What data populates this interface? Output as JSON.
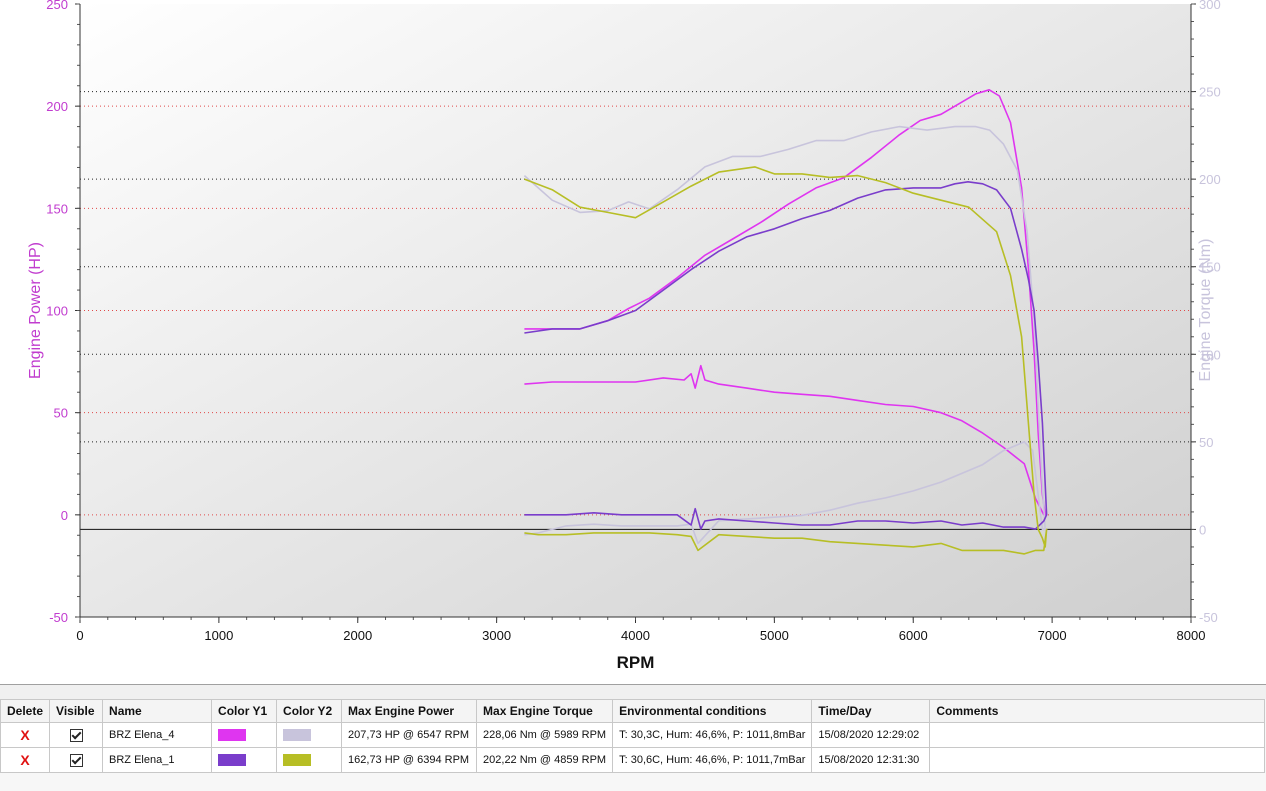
{
  "chart_data": {
    "type": "line",
    "xlabel": "RPM",
    "y1label": "Engine Power (HP)",
    "y2label": "Engine Torque (Nm)",
    "xlim": [
      0,
      8000
    ],
    "y1lim": [
      -50,
      250
    ],
    "y2lim": [
      -50,
      300
    ],
    "x_ticks": [
      "0",
      "1000",
      "2000",
      "3000",
      "4000",
      "5000",
      "6000",
      "7000",
      "8000"
    ],
    "y1_ticks": [
      "-50",
      "0",
      "50",
      "100",
      "150",
      "200",
      "250"
    ],
    "y2_ticks": [
      "-50",
      "0",
      "50",
      "100",
      "150",
      "200",
      "250",
      "300"
    ],
    "grid": true,
    "series": [
      {
        "name": "BRZ Elena_4",
        "axis": "y1",
        "color": "#df35f0",
        "x": [
          3200,
          3400,
          3600,
          3800,
          3950,
          4100,
          4300,
          4500,
          4700,
          4900,
          5100,
          5300,
          5500,
          5700,
          5900,
          6050,
          6200,
          6350,
          6450,
          6547,
          6620,
          6700,
          6780,
          6830,
          6870,
          6900,
          6930,
          6950,
          6960,
          6940,
          6880,
          6800,
          6650,
          6500,
          6350,
          6200,
          6000,
          5800,
          5600,
          5400,
          5200,
          5000,
          4800,
          4600,
          4500,
          4470,
          4430,
          4400,
          4350,
          4200,
          4000,
          3800,
          3600,
          3400,
          3200
        ],
        "y": [
          91,
          91,
          91,
          95,
          101,
          106,
          116,
          127,
          135,
          143,
          152,
          160,
          165,
          175,
          186,
          193,
          196,
          202,
          206,
          208,
          205,
          192,
          160,
          120,
          80,
          40,
          10,
          0,
          0,
          0,
          8,
          25,
          33,
          40,
          46,
          50,
          53,
          54,
          56,
          58,
          59,
          60,
          62,
          64,
          66,
          73,
          62,
          69,
          66,
          67,
          65,
          65,
          65,
          65,
          64
        ]
      },
      {
        "name": "BRZ Elena_4",
        "axis": "y2",
        "color": "#c8c4dc",
        "x": [
          3200,
          3400,
          3600,
          3800,
          3950,
          4100,
          4300,
          4500,
          4700,
          4900,
          5100,
          5300,
          5500,
          5700,
          5900,
          6100,
          6300,
          6450,
          6550,
          6650,
          6750,
          6820,
          6870,
          6900,
          6930,
          6950,
          6960,
          6930,
          6860,
          6800,
          6650,
          6500,
          6350,
          6200,
          6000,
          5800,
          5600,
          5400,
          5200,
          5000,
          4800,
          4600,
          4450,
          4400,
          4300,
          4100,
          3900,
          3700,
          3500,
          3300,
          3200
        ],
        "y": [
          202,
          188,
          181,
          182,
          187,
          183,
          194,
          207,
          213,
          213,
          217,
          222,
          222,
          227,
          230,
          228,
          230,
          230,
          228,
          220,
          205,
          170,
          120,
          70,
          25,
          0,
          0,
          0,
          45,
          50,
          45,
          37,
          32,
          27,
          22,
          18,
          15,
          11,
          8,
          7,
          6,
          5,
          -8,
          3,
          2,
          2,
          2,
          3,
          2,
          -2,
          -3
        ]
      },
      {
        "name": "BRZ Elena_1",
        "axis": "y1",
        "color": "#7a3dcb",
        "x": [
          3200,
          3400,
          3600,
          3800,
          4000,
          4200,
          4400,
          4600,
          4800,
          5000,
          5200,
          5400,
          5600,
          5800,
          6000,
          6200,
          6300,
          6394,
          6500,
          6600,
          6700,
          6780,
          6830,
          6870,
          6900,
          6930,
          6950,
          6960,
          6940,
          6880,
          6800,
          6650,
          6500,
          6350,
          6200,
          6000,
          5800,
          5600,
          5400,
          5200,
          5000,
          4800,
          4600,
          4500,
          4470,
          4430,
          4400,
          4300,
          4100,
          3900,
          3700,
          3500,
          3300,
          3200
        ],
        "y": [
          89,
          91,
          91,
          95,
          100,
          110,
          120,
          129,
          136,
          140,
          145,
          149,
          155,
          159,
          160,
          160,
          162,
          163,
          162,
          159,
          150,
          130,
          115,
          100,
          75,
          45,
          15,
          0,
          -3,
          -7,
          -6,
          -6,
          -4,
          -5,
          -3,
          -4,
          -3,
          -3,
          -5,
          -5,
          -4,
          -3,
          -2,
          -3,
          -7,
          3,
          -5,
          0,
          0,
          0,
          1,
          0,
          0,
          0
        ]
      },
      {
        "name": "BRZ Elena_1",
        "axis": "y2",
        "color": "#b7be25",
        "x": [
          3200,
          3400,
          3600,
          3800,
          4000,
          4200,
          4400,
          4600,
          4859,
          5000,
          5200,
          5400,
          5600,
          5800,
          6000,
          6200,
          6400,
          6600,
          6700,
          6780,
          6830,
          6870,
          6900,
          6930,
          6950,
          6960,
          6940,
          6880,
          6800,
          6650,
          6500,
          6350,
          6200,
          6000,
          5800,
          5600,
          5400,
          5200,
          5000,
          4800,
          4600,
          4450,
          4400,
          4300,
          4100,
          3900,
          3700,
          3500,
          3300,
          3200
        ],
        "y": [
          200,
          194,
          184,
          181,
          178,
          187,
          196,
          204,
          207,
          203,
          203,
          201,
          202,
          198,
          192,
          188,
          184,
          170,
          145,
          110,
          60,
          20,
          0,
          -5,
          -10,
          0,
          -12,
          -12,
          -14,
          -12,
          -12,
          -12,
          -8,
          -10,
          -9,
          -8,
          -7,
          -5,
          -5,
          -4,
          -3,
          -12,
          -4,
          -3,
          -2,
          -2,
          -2,
          -3,
          -3,
          -2
        ]
      }
    ]
  },
  "table": {
    "headers": [
      "Delete",
      "Visible",
      "Name",
      "Color Y1",
      "Color Y2",
      "Max Engine Power",
      "Max Engine Torque",
      "Environmental conditions",
      "Time/Day",
      "Comments"
    ],
    "rows": [
      {
        "delete": "X",
        "name": "BRZ Elena_4",
        "color_y1": "#df35f0",
        "color_y2": "#c8c4dc",
        "max_power": "207,73 HP @ 6547 RPM",
        "max_torque": "228,06 Nm @ 5989 RPM",
        "env": "T: 30,3C, Hum: 46,6%, P: 1011,8mBar",
        "time": "15/08/2020 12:29:02",
        "comments": ""
      },
      {
        "delete": "X",
        "name": "BRZ Elena_1",
        "color_y1": "#7a3dcb",
        "color_y2": "#b7be25",
        "max_power": "162,73 HP @ 6394 RPM",
        "max_torque": "202,22 Nm @ 4859 RPM",
        "env": "T: 30,6C, Hum: 46,6%, P: 1011,7mBar",
        "time": "15/08/2020 12:31:30",
        "comments": ""
      }
    ]
  }
}
